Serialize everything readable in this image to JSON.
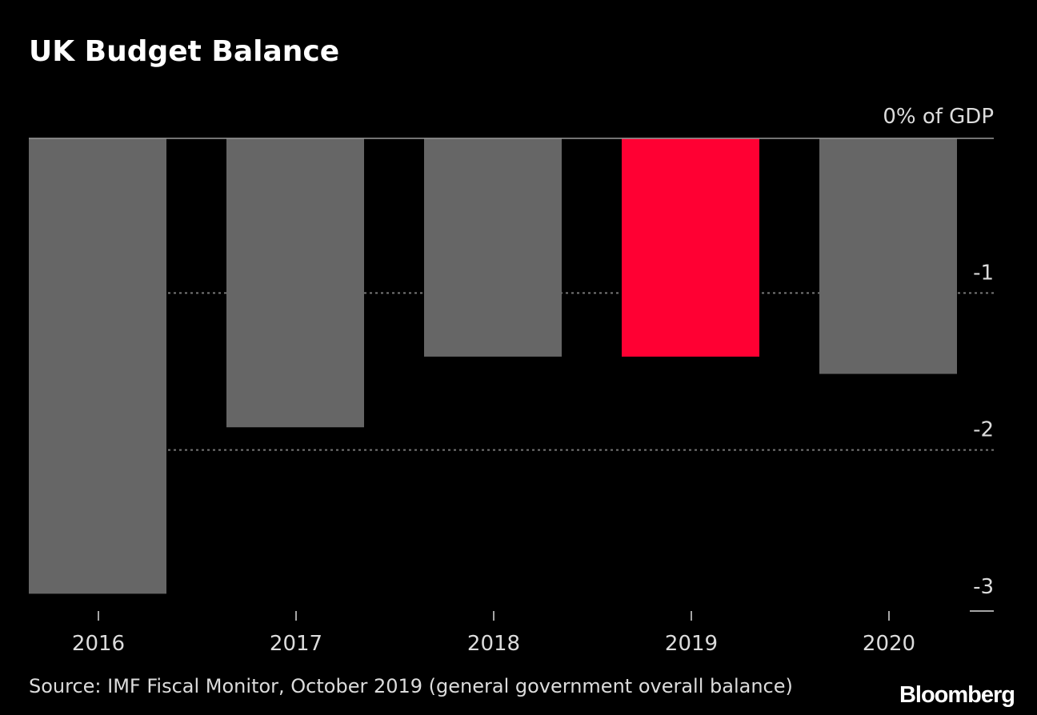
{
  "chart_data": {
    "type": "bar",
    "title": "UK Budget Balance",
    "ylabel": "0% of GDP",
    "categories": [
      "2016",
      "2017",
      "2018",
      "2019",
      "2020"
    ],
    "values": [
      -2.9,
      -1.84,
      -1.39,
      -1.39,
      -1.5
    ],
    "highlight_index": 3,
    "ylim": [
      -3,
      0
    ],
    "yticks": [
      {
        "value": 0,
        "label": "0% of GDP"
      },
      {
        "value": -1,
        "label": "-1"
      },
      {
        "value": -2,
        "label": "-2"
      },
      {
        "value": -3,
        "label": "-3"
      }
    ],
    "source": "Source: IMF Fiscal Monitor, October 2019 (general government overall balance)"
  },
  "brand": "Bloomberg",
  "colors": {
    "background": "#000000",
    "bar": "#666666",
    "highlight": "#ff0033",
    "gridline": "#777777",
    "zero_line": "#999999",
    "text": "#dcdcdc"
  }
}
